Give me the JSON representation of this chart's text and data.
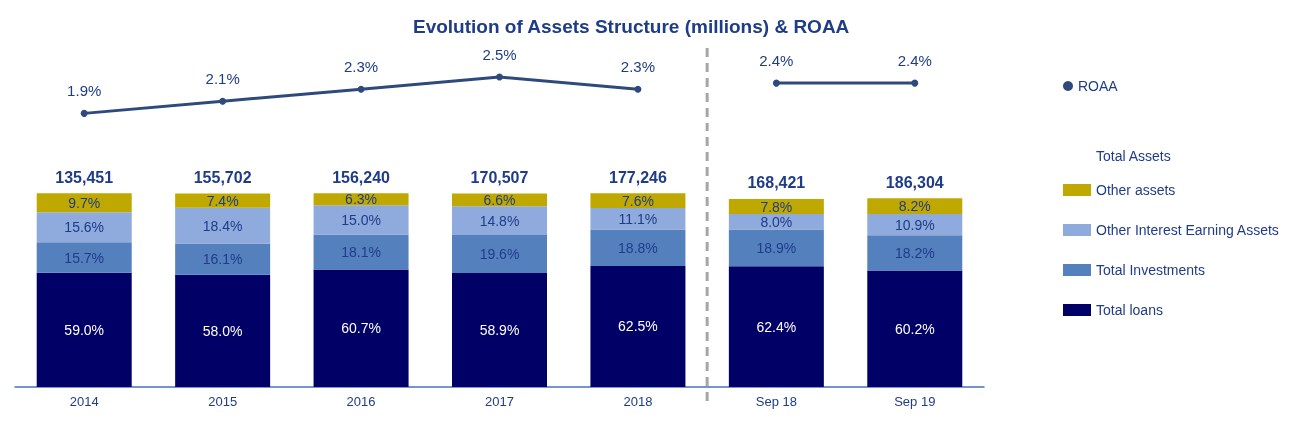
{
  "chart_data": [
    {
      "type": "line",
      "title": "Evolution of Assets Structure (millions) & ROAA",
      "categories": [
        null,
        null,
        null,
        null,
        null,
        null,
        null
      ],
      "tick_labels": "x",
      "legend": "right",
      "marker": "circle",
      "series": [
        {
          "name": "ROAA",
          "color": "#2e4a7d",
          "values": [
            1.9,
            2.1,
            2.3,
            2.5,
            2.3,
            null,
            null
          ],
          "value_labels": [
            "1.9%",
            "2.1%",
            "2.3%",
            "2.5%",
            "2.3%",
            null,
            null
          ]
        },
        {
          "color": "#2e4a7d",
          "values": [
            null,
            null,
            null,
            null,
            null,
            2.4,
            2.4
          ],
          "value_labels": [
            null,
            null,
            null,
            null,
            null,
            "2.4%",
            "2.4%"
          ]
        }
      ]
    },
    {
      "type": "bar",
      "categories": [
        "2014",
        "2015",
        "2016",
        "2017",
        "2018",
        "Sep 18",
        "Sep 19"
      ],
      "stacked": true,
      "tick_labels": "x",
      "legend": "right",
      "legend_title": "Total Assets",
      "series": [
        {
          "name": "Total loans",
          "color": "#000066",
          "values": [
            59.0,
            58.0,
            60.7,
            58.9,
            62.5,
            62.4,
            60.2
          ],
          "value_labels": [
            "59.0%",
            "58.0%",
            "60.7%",
            "58.9%",
            "62.5%",
            "62.4%",
            "60.2%"
          ]
        },
        {
          "name": "Total Investments",
          "color": "#5580be",
          "values": [
            15.7,
            16.1,
            18.1,
            19.6,
            18.8,
            18.9,
            18.2
          ],
          "value_labels": [
            "15.7%",
            "16.1%",
            "18.1%",
            "19.6%",
            "18.8%",
            "18.9%",
            "18.2%"
          ]
        },
        {
          "name": "Other Interest Earning Assets",
          "color": "#8faadc",
          "values": [
            15.6,
            18.4,
            15.0,
            14.8,
            11.1,
            8.0,
            10.9
          ],
          "value_labels": [
            "15.6%",
            "18.4%",
            "15.0%",
            "14.8%",
            "11.1%",
            "8.0%",
            "10.9%"
          ]
        },
        {
          "name": "Other assets",
          "color": "#bfa800",
          "values": [
            9.7,
            7.4,
            6.3,
            6.6,
            7.6,
            7.8,
            8.2
          ],
          "value_labels": [
            "9.7%",
            "7.4%",
            "6.3%",
            "6.6%",
            "7.6%",
            "7.8%",
            "8.2%"
          ]
        }
      ],
      "annotations": [
        "135,451",
        "155,702",
        "156,240",
        "170,507",
        "177,246",
        "168,421",
        "186,304"
      ]
    }
  ]
}
